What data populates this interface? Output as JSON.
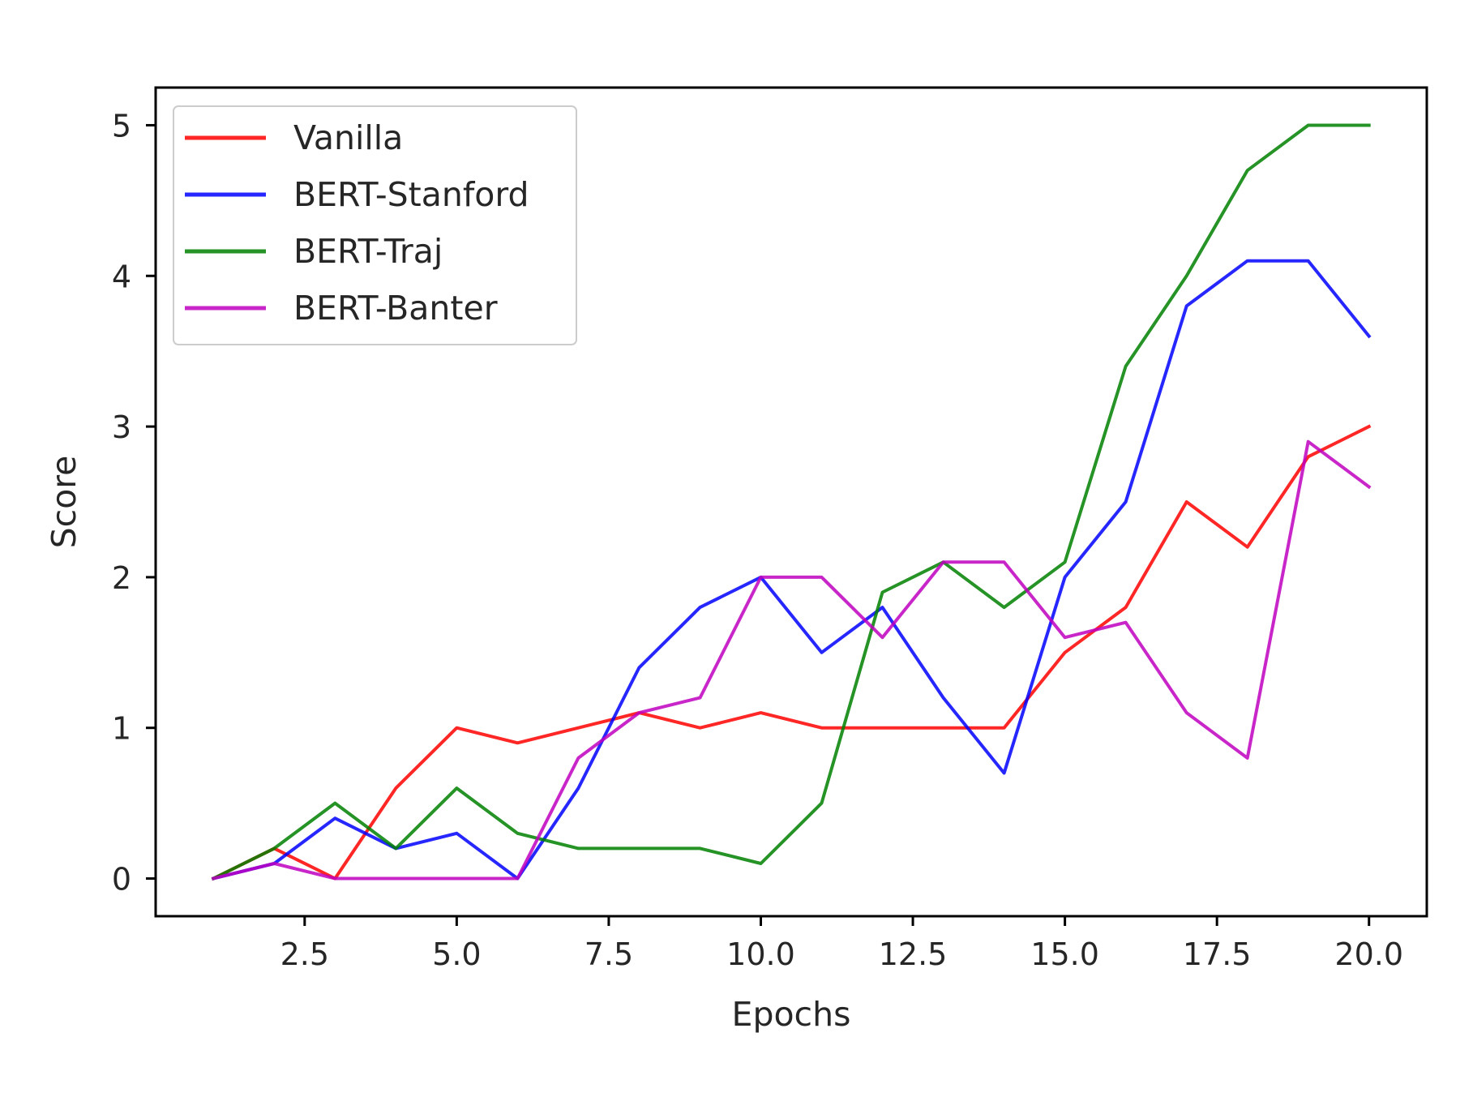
{
  "chart_data": {
    "type": "line",
    "title": "",
    "xlabel": "Epochs",
    "ylabel": "Score",
    "xlim": [
      0.05,
      20.95
    ],
    "ylim": [
      -0.25,
      5.25
    ],
    "x_ticks": [
      2.5,
      5.0,
      7.5,
      10.0,
      12.5,
      15.0,
      17.5,
      20.0
    ],
    "x_tick_labels": [
      "2.5",
      "5.0",
      "7.5",
      "10.0",
      "12.5",
      "15.0",
      "17.5",
      "20.0"
    ],
    "y_ticks": [
      0,
      1,
      2,
      3,
      4,
      5
    ],
    "y_tick_labels": [
      "0",
      "1",
      "2",
      "3",
      "4",
      "5"
    ],
    "grid": false,
    "legend_position": "top-left",
    "x": [
      1,
      2,
      3,
      4,
      5,
      6,
      7,
      8,
      9,
      10,
      11,
      12,
      13,
      14,
      15,
      16,
      17,
      18,
      19,
      20
    ],
    "series": [
      {
        "name": "Vanilla",
        "color": "#ff0000",
        "values": [
          0.0,
          0.2,
          0.0,
          0.6,
          1.0,
          0.9,
          1.0,
          1.1,
          1.0,
          1.1,
          1.0,
          1.0,
          1.0,
          1.0,
          1.5,
          1.8,
          2.5,
          2.2,
          2.8,
          3.0
        ]
      },
      {
        "name": "BERT-Stanford",
        "color": "#0000ff",
        "values": [
          0.0,
          0.1,
          0.4,
          0.2,
          0.3,
          0.0,
          0.6,
          1.4,
          1.8,
          2.0,
          1.5,
          1.8,
          1.2,
          0.7,
          2.0,
          2.5,
          3.8,
          4.1,
          4.1,
          3.6
        ]
      },
      {
        "name": "BERT-Traj",
        "color": "#008000",
        "values": [
          0.0,
          0.2,
          0.5,
          0.2,
          0.6,
          0.3,
          0.2,
          0.2,
          0.2,
          0.1,
          0.5,
          1.9,
          2.1,
          1.8,
          2.1,
          3.4,
          4.0,
          4.7,
          5.0,
          5.0
        ]
      },
      {
        "name": "BERT-Banter",
        "color": "#bf00bf",
        "values": [
          0.0,
          0.1,
          0.0,
          0.0,
          0.0,
          0.0,
          0.8,
          1.1,
          1.2,
          2.0,
          2.0,
          1.6,
          2.1,
          2.1,
          1.6,
          1.7,
          1.1,
          0.8,
          2.9,
          2.6
        ]
      }
    ]
  }
}
